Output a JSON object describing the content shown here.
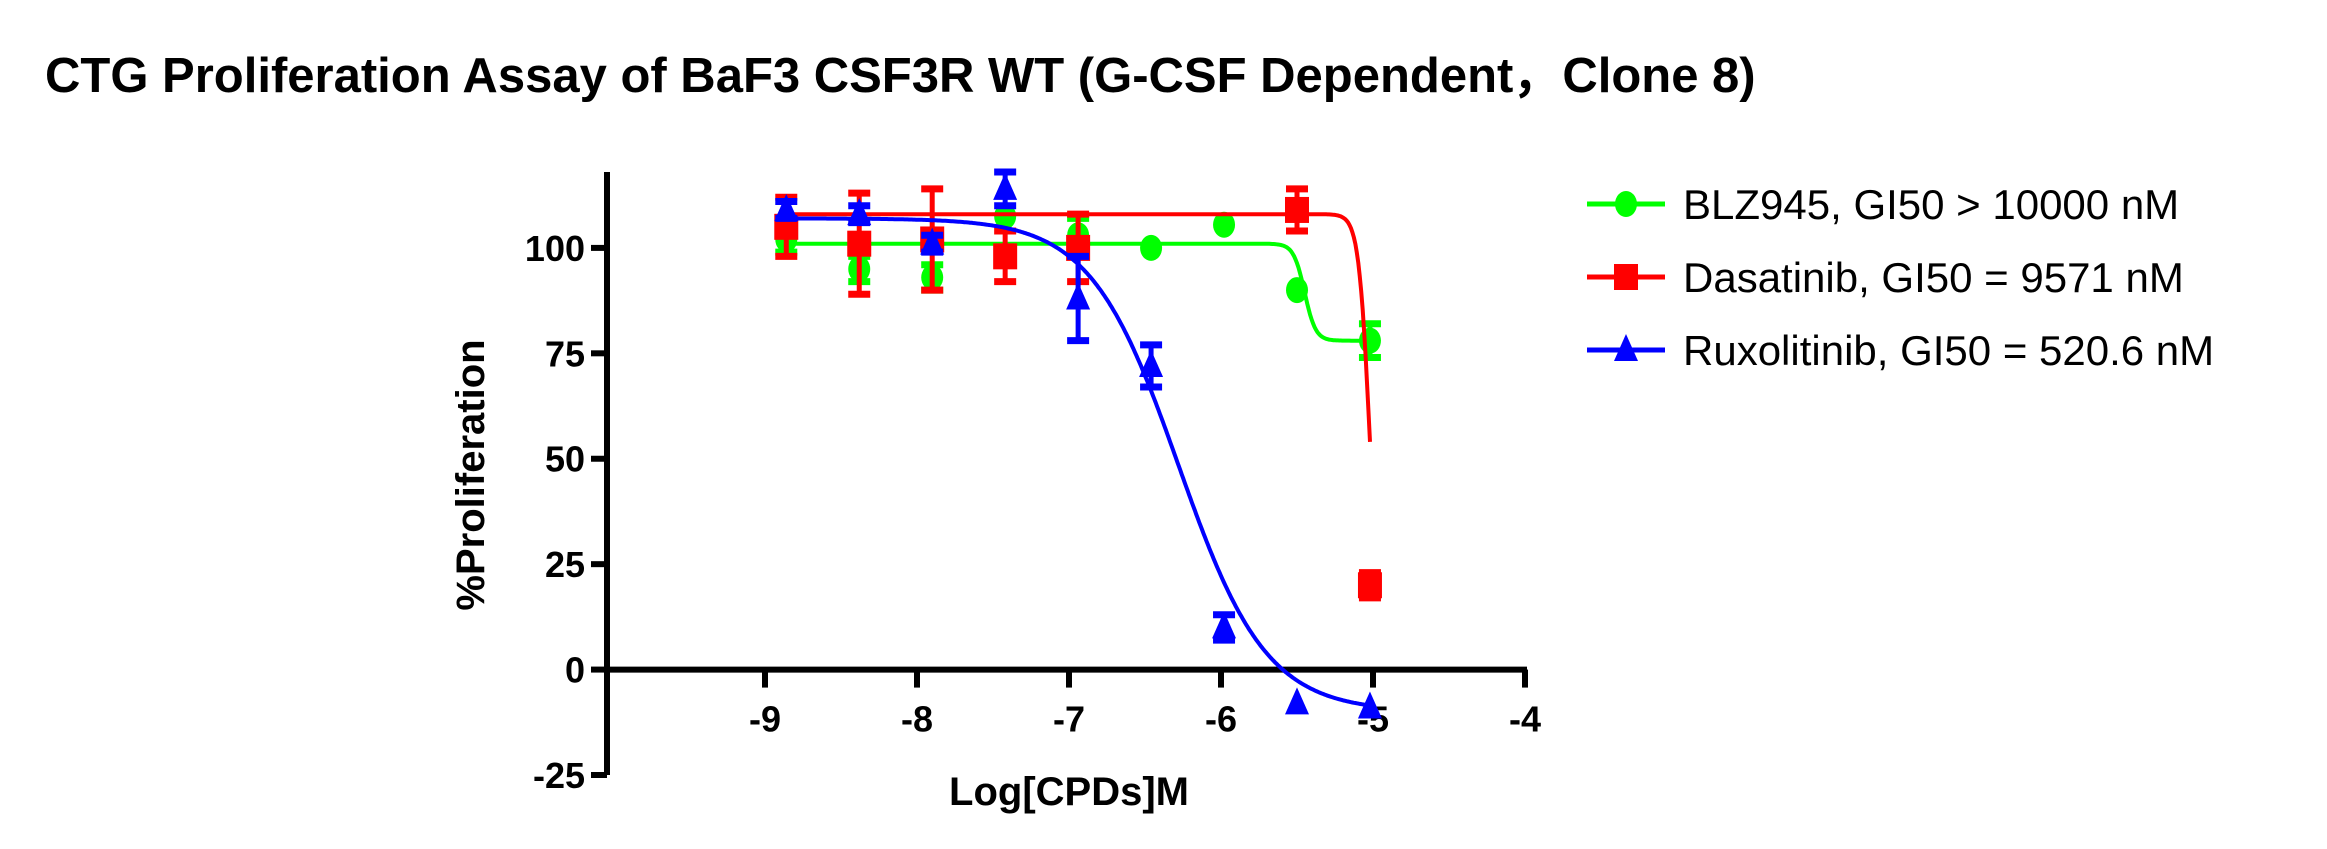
{
  "chart_data": {
    "type": "scatter",
    "title": "CTG Proliferation Assay of BaF3 CSF3R WT (G-CSF Dependent，Clone 8)",
    "xlabel": "Log[CPDs]M",
    "ylabel": "%Proliferation",
    "xlim": [
      -10,
      -4
    ],
    "ylim": [
      -25,
      118
    ],
    "xticks": [
      -9,
      -8,
      -7,
      -6,
      -5,
      -4
    ],
    "yticks": [
      -25,
      0,
      25,
      50,
      75,
      100
    ],
    "grid": false,
    "legend_position": "right",
    "x": [
      -8.86,
      -8.38,
      -7.9,
      -7.42,
      -6.94,
      -6.46,
      -5.98,
      -5.5,
      -5.02
    ],
    "series": [
      {
        "name": "BLZ945, GI50 > 10000 nM",
        "color": "#00ff00",
        "marker": "circle",
        "values": [
          102,
          95,
          93,
          107.5,
          103,
          100,
          105.5,
          90,
          78
        ],
        "errors": [
          3,
          3,
          3,
          1,
          4,
          1,
          1,
          1,
          4
        ],
        "fit": {
          "top": 101,
          "bottom": 78,
          "logIC50": -5.45,
          "hill": -12
        }
      },
      {
        "name": "Dasatinib, GI50 = 9571 nM",
        "color": "#ff0000",
        "marker": "square",
        "values": [
          105,
          101,
          102,
          98,
          100,
          null,
          null,
          109,
          20
        ],
        "errors": [
          7,
          12,
          12,
          6,
          8,
          null,
          null,
          5,
          3
        ],
        "fit": {
          "top": 108,
          "bottom": 0,
          "logIC50": -5.02,
          "hill": -12
        }
      },
      {
        "name": "Ruxolitinib, GI50 = 520.6 nM",
        "color": "#0000ff",
        "marker": "triangle",
        "values": [
          109,
          108,
          101,
          114,
          88,
          72,
          10,
          -8,
          -9
        ],
        "errors": [
          2,
          2,
          2,
          4,
          10,
          5,
          3,
          1,
          1
        ],
        "fit": {
          "top": 107,
          "bottom": -10,
          "logIC50": -6.28,
          "hill": -1.5
        }
      }
    ]
  }
}
